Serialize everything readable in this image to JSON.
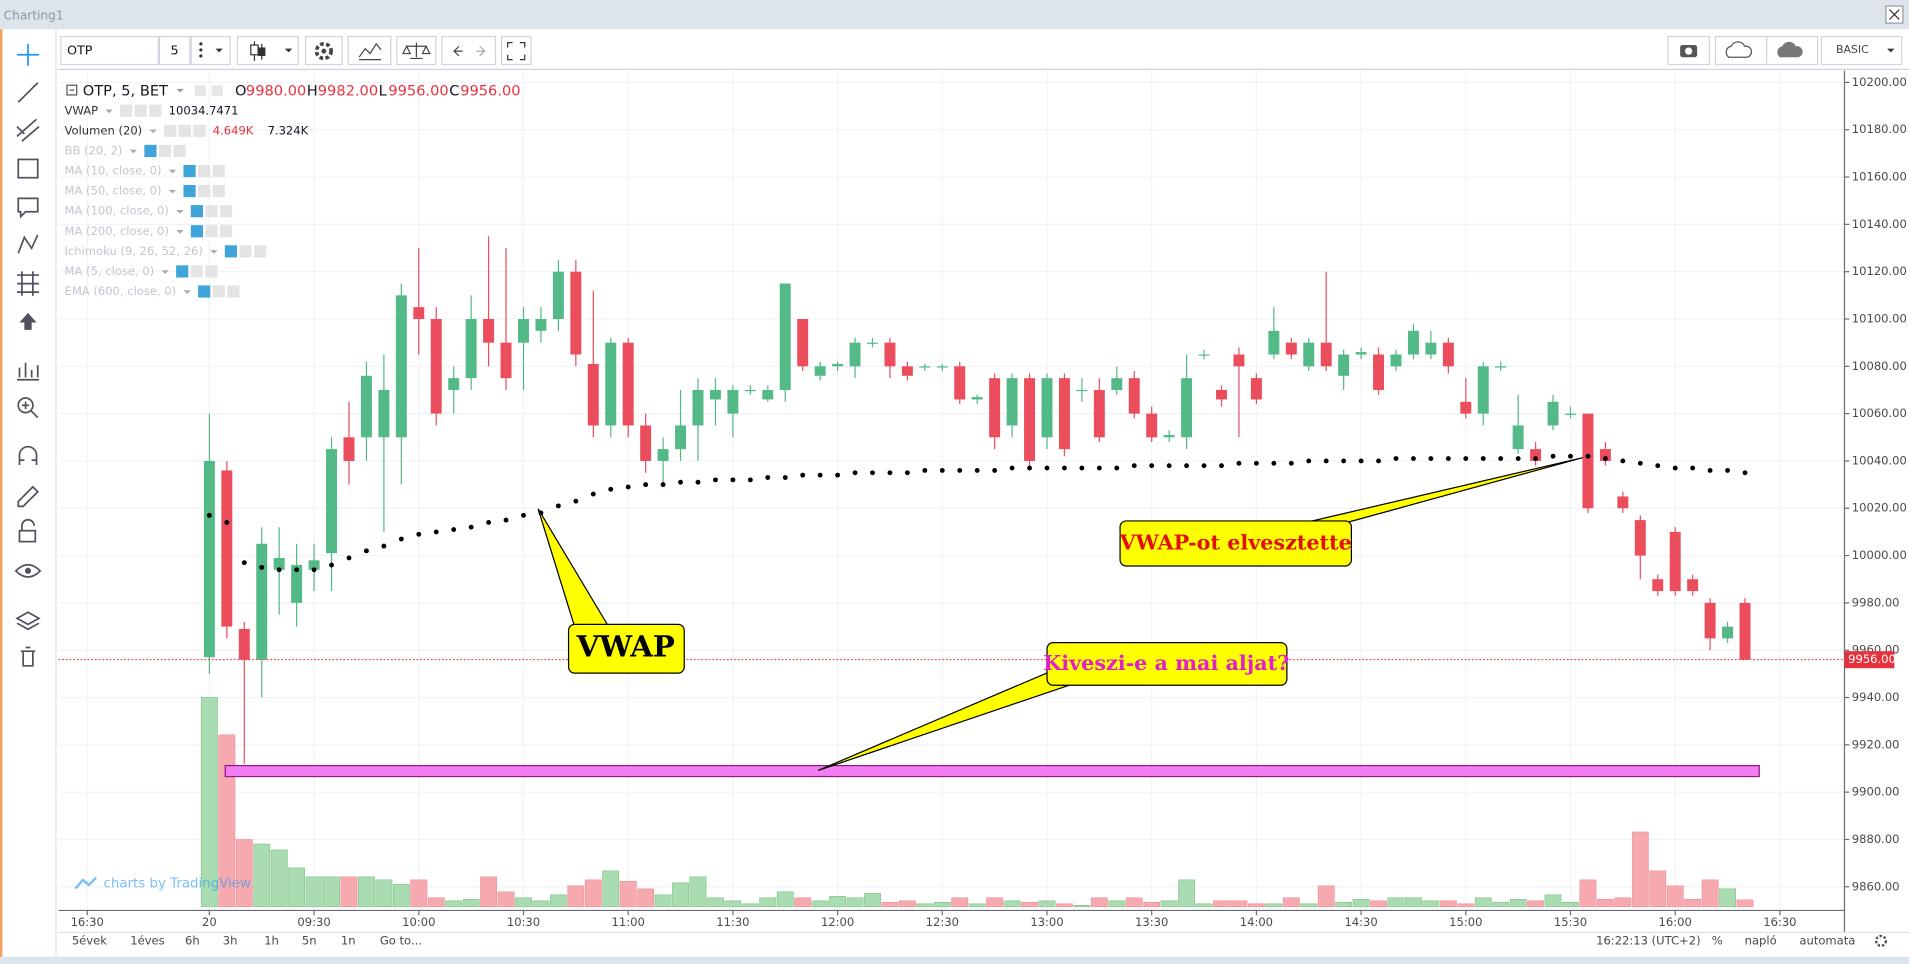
{
  "ui": {
    "window_title": "Charting1",
    "symbol": "OTP",
    "interval": "5",
    "plan": "BASIC",
    "legend": {
      "title": "OTP, 5, BET",
      "o_label": "O",
      "o": "9980.00",
      "h_label": "H",
      "h": "9982.00",
      "l_label": "L",
      "l": "9956.00",
      "c_label": "C",
      "c": "9956.00"
    },
    "indicators": [
      {
        "name": "VWAP",
        "value": "10034.7471"
      },
      {
        "name": "Volumen (20)",
        "value": "4.649K",
        "value2": "7.324K"
      },
      {
        "name": "BB (20, 2)"
      },
      {
        "name": "MA (10, close, 0)"
      },
      {
        "name": "MA (50, close, 0)"
      },
      {
        "name": "MA (100, close, 0)"
      },
      {
        "name": "MA (200, close, 0)"
      },
      {
        "name": "Ichimoku (9, 26, 52, 26)"
      },
      {
        "name": "MA (5, close, 0)"
      },
      {
        "name": "EMA (600, close, 0)"
      }
    ],
    "bottom_bar": [
      "5évek",
      "1éves",
      "6h",
      "3h",
      "1h",
      "5n",
      "1n",
      "Go to..."
    ],
    "clock": "16:22:13 (UTC+2)",
    "percent": "%",
    "log": "napló",
    "auto": "automata",
    "watermark": "charts by TradingView"
  },
  "chart_data": {
    "type": "candlestick",
    "ylim": [
      9850,
      10205
    ],
    "yticks": [
      {
        "value": 9860,
        "label": "9860.00"
      },
      {
        "value": 9880,
        "label": "9880.00"
      },
      {
        "value": 9900,
        "label": "9900.00"
      },
      {
        "value": 9920,
        "label": "9920.00"
      },
      {
        "value": 9940,
        "label": "9940.00"
      },
      {
        "value": 9960,
        "label": "9960.00"
      },
      {
        "value": 9980,
        "label": "9980.00"
      },
      {
        "value": 10000,
        "label": "10000.00"
      },
      {
        "value": 10020,
        "label": "10020.00"
      },
      {
        "value": 10040,
        "label": "10040.00"
      },
      {
        "value": 10060,
        "label": "10060.00"
      },
      {
        "value": 10080,
        "label": "10080.00"
      },
      {
        "value": 10100,
        "label": "10100.00"
      },
      {
        "value": 10120,
        "label": "10120.00"
      },
      {
        "value": 10140,
        "label": "10140.00"
      },
      {
        "value": 10160,
        "label": "10160.00"
      },
      {
        "value": 10180,
        "label": "10180.00"
      },
      {
        "value": 10200,
        "label": "10200.00"
      }
    ],
    "xlim": [
      -8.65,
      93.7
    ],
    "xticks": [
      {
        "value": -7,
        "label": "16:30"
      },
      {
        "value": 0,
        "label": "20"
      },
      {
        "value": 6,
        "label": "09:30"
      },
      {
        "value": 12,
        "label": "10:00"
      },
      {
        "value": 18,
        "label": "10:30"
      },
      {
        "value": 24,
        "label": "11:00"
      },
      {
        "value": 30,
        "label": "11:30"
      },
      {
        "value": 36,
        "label": "12:00"
      },
      {
        "value": 42,
        "label": "12:30"
      },
      {
        "value": 48,
        "label": "13:00"
      },
      {
        "value": 54,
        "label": "13:30"
      },
      {
        "value": 60,
        "label": "14:00"
      },
      {
        "value": 66,
        "label": "14:30"
      },
      {
        "value": 72,
        "label": "15:00"
      },
      {
        "value": 78,
        "label": "15:30"
      },
      {
        "value": 84,
        "label": "16:00"
      },
      {
        "value": 90,
        "label": "16:30"
      }
    ],
    "grid": true,
    "series": [
      {
        "up_color": "#53b987",
        "down_color": "#eb4d5c",
        "open": [
          9957,
          10036,
          9969,
          9956,
          9994,
          9980,
          9994,
          10001,
          10050,
          10050,
          10050,
          10050,
          10105,
          10100,
          10070,
          10075,
          10100,
          10090,
          10090,
          10095,
          10100,
          10120,
          10081,
          10055,
          10090,
          10055,
          10040,
          10045,
          10055,
          10066,
          10060,
          10070,
          10066,
          10070,
          10100,
          10076,
          10080,
          10080,
          10090,
          10090,
          10080,
          10080,
          10080,
          10080,
          10066,
          10075,
          10055,
          10075,
          10050,
          10075,
          10070,
          10070,
          10070,
          10075,
          10060,
          10050,
          10050,
          10085,
          10070,
          10085,
          10075,
          10085,
          10090,
          10080,
          10090,
          10076,
          10085,
          10085,
          10080,
          10085,
          10085,
          10090,
          10065,
          10060,
          10080,
          10045,
          10045,
          10055,
          10060,
          10060,
          10045,
          10025,
          10015,
          9990,
          10010,
          9990,
          9980,
          9965,
          9980
        ],
        "high": [
          10060,
          10040,
          9972,
          10012,
          10012,
          10005,
          10005,
          10050,
          10065,
          10082,
          10085,
          10115,
          10130,
          10105,
          10080,
          10110,
          10135,
          10130,
          10105,
          10105,
          10125,
          10125,
          10112,
          10092,
          10092,
          10060,
          10050,
          10070,
          10075,
          10075,
          10072,
          10072,
          10072,
          10115,
          10100,
          10082,
          10082,
          10092,
          10092,
          10092,
          10082,
          10081,
          10081,
          10082,
          10068,
          10077,
          10077,
          10077,
          10077,
          10077,
          10075,
          10075,
          10080,
          10078,
          10063,
          10053,
          10085,
          10087,
          10072,
          10088,
          10077,
          10105,
          10092,
          10092,
          10120,
          10087,
          10088,
          10088,
          10087,
          10098,
          10095,
          10092,
          10075,
          10082,
          10082,
          10068,
          10048,
          10068,
          10063,
          10060,
          10048,
          10027,
          10017,
          9992,
          10012,
          9992,
          9982,
          9972,
          9982
        ],
        "low": [
          9950,
          9965,
          9912,
          9940,
          9975,
          9970,
          9985,
          9985,
          10030,
          10040,
          10010,
          10030,
          10085,
          10055,
          10060,
          10070,
          10080,
          10070,
          10070,
          10090,
          10095,
          10080,
          10050,
          10050,
          10050,
          10035,
          10030,
          10040,
          10040,
          10055,
          10050,
          10068,
          10065,
          10065,
          10078,
          10074,
          10078,
          10075,
          10088,
          10075,
          10074,
          10078,
          10078,
          10064,
          10064,
          10045,
          10050,
          10038,
          10045,
          10042,
          10065,
          10048,
          10068,
          10058,
          10048,
          10048,
          10045,
          10083,
          10063,
          10050,
          10064,
          10083,
          10083,
          10078,
          10078,
          10070,
          10083,
          10068,
          10078,
          10083,
          10083,
          10077,
          10058,
          10055,
          10078,
          10043,
          10038,
          10053,
          10058,
          10018,
          10038,
          10018,
          9990,
          9983,
          9983,
          9983,
          9960,
          9963,
          9956
        ],
        "close": [
          10040,
          9970,
          9956,
          10005,
          9999,
          9996,
          9998,
          10045,
          10040,
          10076,
          10070,
          10110,
          10100,
          10060,
          10075,
          10100,
          10090,
          10075,
          10100,
          10100,
          10120,
          10085,
          10055,
          10090,
          10055,
          10040,
          10045,
          10055,
          10070,
          10070,
          10070,
          10070,
          10070,
          10115,
          10080,
          10080,
          10081,
          10090,
          10090,
          10080,
          10076,
          10080,
          10080,
          10066,
          10067,
          10050,
          10075,
          10040,
          10075,
          10045,
          10070,
          10050,
          10075,
          10060,
          10050,
          10051,
          10075,
          10085,
          10066,
          10080,
          10066,
          10095,
          10085,
          10090,
          10080,
          10085,
          10086,
          10070,
          10085,
          10095,
          10090,
          10080,
          10060,
          10080,
          10080,
          10055,
          10040,
          10065,
          10060,
          10020,
          10040,
          10020,
          10000,
          9985,
          9985,
          9985,
          9965,
          9970,
          9956
        ]
      }
    ],
    "vwap": {
      "color": "#000000",
      "values": [
        10017,
        10014,
        9997,
        9995,
        9994,
        9994,
        9994,
        9996,
        9999,
        10002,
        10004,
        10007,
        10009,
        10010,
        10011,
        10012,
        10014,
        10015,
        10017,
        10018,
        10021,
        10023,
        10026,
        10028,
        10029,
        10030,
        10030,
        10031,
        10031,
        10032,
        10032,
        10032,
        10033,
        10033,
        10034,
        10034,
        10034,
        10035,
        10035,
        10035,
        10035,
        10036,
        10036,
        10036,
        10036,
        10036,
        10037,
        10037,
        10037,
        10037,
        10037,
        10037,
        10037,
        10038,
        10038,
        10038,
        10038,
        10038,
        10038,
        10039,
        10039,
        10039,
        10039,
        10040,
        10040,
        10040,
        10040,
        10040,
        10041,
        10041,
        10041,
        10041,
        10041,
        10041,
        10041,
        10041,
        10041,
        10042,
        10042,
        10042,
        10041,
        10040,
        10039,
        10038,
        10037,
        10037,
        10036,
        10036,
        10035
      ]
    },
    "volume": {
      "up_color": "#a9dcb0",
      "down_color": "#f7a9b0",
      "values": [
        140,
        115,
        45,
        42,
        38,
        26,
        20,
        20,
        20,
        20,
        18,
        15,
        18,
        6,
        4,
        5,
        20,
        10,
        6,
        4,
        8,
        14,
        18,
        24,
        17,
        12,
        8,
        16,
        20,
        6,
        4,
        2,
        6,
        10,
        6,
        4,
        7,
        6,
        9,
        3,
        4,
        2,
        3,
        6,
        2,
        6,
        4,
        3,
        4,
        2,
        1,
        6,
        4,
        6,
        3,
        4,
        18,
        2,
        4,
        4,
        2,
        2,
        6,
        2,
        14,
        3,
        5,
        4,
        6,
        6,
        4,
        4,
        2,
        6,
        3,
        5,
        4,
        8,
        3,
        18,
        5,
        6,
        50,
        24,
        14,
        5,
        18,
        12,
        4.649
      ]
    },
    "last_price": {
      "value": 9956,
      "label": "9956.00",
      "color": "#e8313f"
    },
    "annotations": [
      {
        "text": "VWAP",
        "color": "#000000"
      },
      {
        "text": "VWAP-ot elvesztette",
        "color": "#e01010"
      },
      {
        "text": "Kiveszi-e a mai aljat?",
        "color": "#e020c8"
      }
    ]
  }
}
